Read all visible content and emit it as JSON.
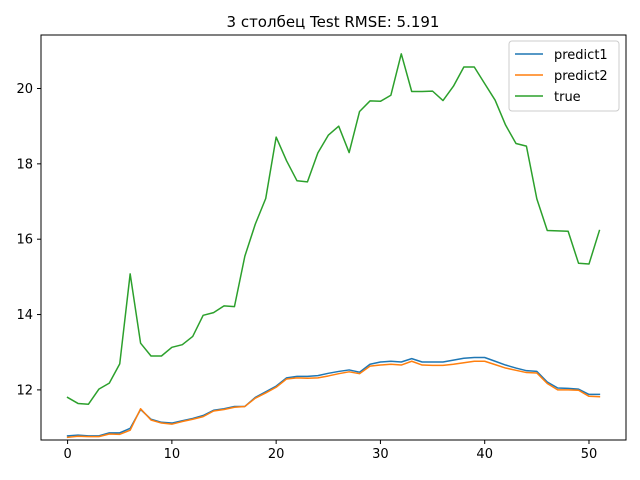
{
  "chart_data": {
    "type": "line",
    "title": "3 столбец Test RMSE: 5.191",
    "xlabel": "",
    "ylabel": "",
    "xlim": [
      -2.55,
      53.55
    ],
    "ylim": [
      10.67,
      21.42
    ],
    "xticks": [
      0,
      10,
      20,
      30,
      40,
      50
    ],
    "yticks": [
      12,
      14,
      16,
      18,
      20
    ],
    "grid": false,
    "legend_position": "top-right",
    "x": [
      0,
      1,
      2,
      3,
      4,
      5,
      6,
      7,
      8,
      9,
      10,
      11,
      12,
      13,
      14,
      15,
      16,
      17,
      18,
      19,
      20,
      21,
      22,
      23,
      24,
      25,
      26,
      27,
      28,
      29,
      30,
      31,
      32,
      33,
      34,
      35,
      36,
      37,
      38,
      39,
      40,
      41,
      42,
      43,
      44,
      45,
      46,
      47,
      48,
      49,
      50,
      51
    ],
    "series": [
      {
        "name": "predict1",
        "color": "#1f77b4",
        "values": [
          10.78,
          10.8,
          10.78,
          10.78,
          10.86,
          10.86,
          10.98,
          11.48,
          11.22,
          11.14,
          11.12,
          11.18,
          11.24,
          11.32,
          11.46,
          11.5,
          11.56,
          11.56,
          11.8,
          11.95,
          12.1,
          12.32,
          12.36,
          12.36,
          12.38,
          12.44,
          12.49,
          12.53,
          12.47,
          12.68,
          12.74,
          12.76,
          12.74,
          12.83,
          12.74,
          12.74,
          12.74,
          12.79,
          12.84,
          12.86,
          12.86,
          12.76,
          12.66,
          12.58,
          12.51,
          12.49,
          12.21,
          12.05,
          12.04,
          12.02,
          11.88,
          11.88
        ]
      },
      {
        "name": "predict2",
        "color": "#ff7f0e",
        "values": [
          10.74,
          10.77,
          10.76,
          10.76,
          10.83,
          10.82,
          10.93,
          11.5,
          11.2,
          11.12,
          11.09,
          11.16,
          11.22,
          11.29,
          11.44,
          11.48,
          11.54,
          11.56,
          11.78,
          11.92,
          12.07,
          12.29,
          12.32,
          12.31,
          12.32,
          12.37,
          12.43,
          12.48,
          12.43,
          12.63,
          12.66,
          12.68,
          12.66,
          12.76,
          12.66,
          12.65,
          12.65,
          12.68,
          12.72,
          12.76,
          12.76,
          12.67,
          12.58,
          12.52,
          12.46,
          12.45,
          12.17,
          12.0,
          12.0,
          11.99,
          11.83,
          11.82
        ]
      },
      {
        "name": "true",
        "color": "#2ca02c",
        "values": [
          11.8,
          11.64,
          11.62,
          12.02,
          12.18,
          12.69,
          15.08,
          13.24,
          12.9,
          12.9,
          13.13,
          13.2,
          13.42,
          13.98,
          14.05,
          14.23,
          14.21,
          15.55,
          16.4,
          17.08,
          18.71,
          18.08,
          17.55,
          17.52,
          18.29,
          18.76,
          19.0,
          18.3,
          19.39,
          19.67,
          19.66,
          19.82,
          20.92,
          19.92,
          19.92,
          19.93,
          19.68,
          20.06,
          20.57,
          20.57,
          20.13,
          19.69,
          19.03,
          18.54,
          18.47,
          17.07,
          16.23,
          16.22,
          16.21,
          15.36,
          15.34,
          16.23
        ]
      }
    ]
  }
}
